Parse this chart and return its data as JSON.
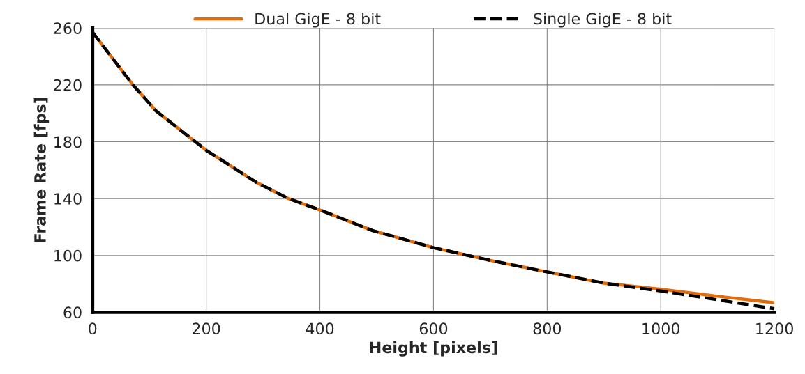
{
  "chart_data": {
    "type": "line",
    "xlabel": "Height [pixels]",
    "ylabel": "Frame Rate [fps]",
    "x": [
      0,
      71,
      112,
      200,
      288,
      345,
      400,
      493,
      600,
      700,
      800,
      900,
      1000,
      1100,
      1200
    ],
    "series": [
      {
        "name": "Dual GigE - 8 bit",
        "color": "#e36c09",
        "line_style": "solid",
        "values": [
          257,
          220,
          201.6,
          174,
          151.5,
          140,
          132,
          117.5,
          105.5,
          96.5,
          88.4,
          80.5,
          76.3,
          71.3,
          66.7
        ]
      },
      {
        "name": "Single GigE - 8 bit",
        "color": "#000000",
        "line_style": "dashed",
        "values": [
          257,
          220,
          201.6,
          174,
          151.5,
          140,
          132,
          117.5,
          105.5,
          96.5,
          88.4,
          80.5,
          75,
          68.8,
          62.5
        ]
      }
    ],
    "xlim": [
      0,
      1200
    ],
    "xticks": [
      0,
      200,
      400,
      600,
      800,
      1000,
      1200
    ],
    "ylim": [
      60,
      260
    ],
    "yticks": [
      60,
      100,
      140,
      180,
      220,
      260
    ],
    "grid": true,
    "legend": "top",
    "marker": "none"
  }
}
